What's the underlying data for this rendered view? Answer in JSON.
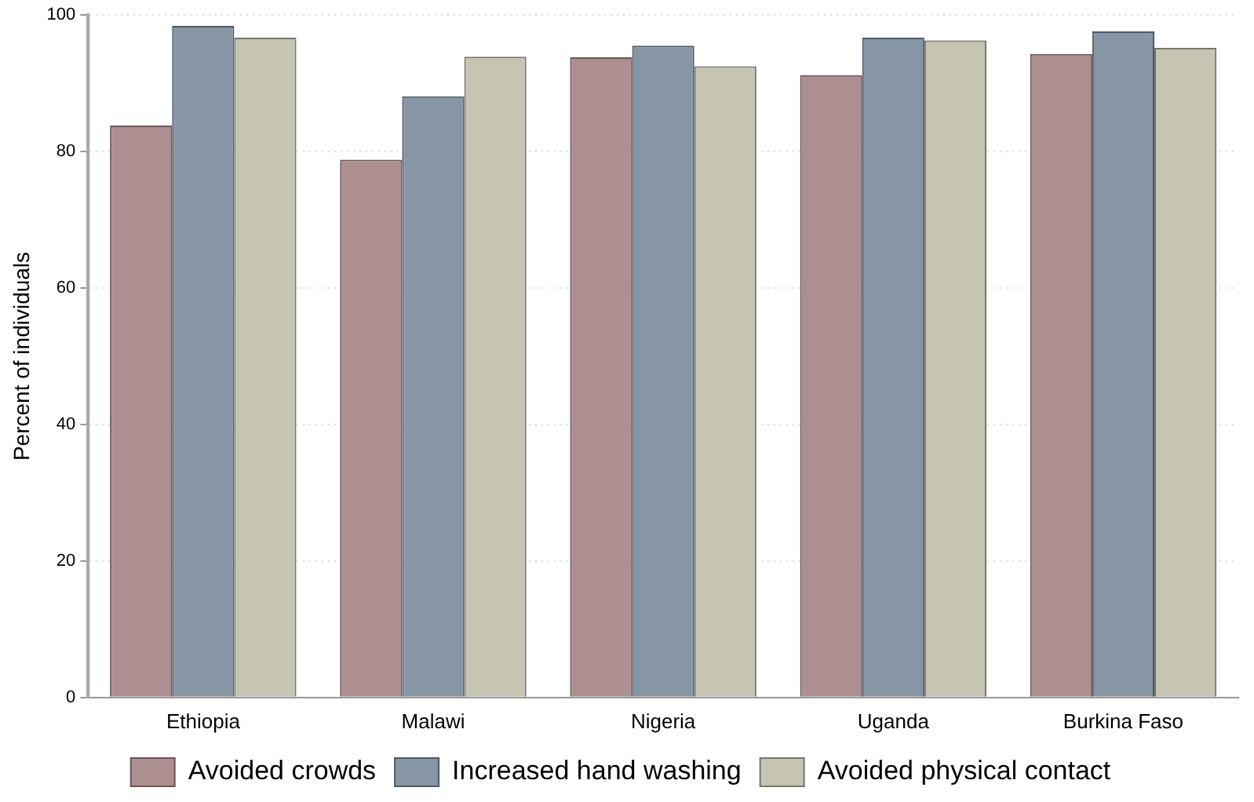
{
  "chart_data": {
    "type": "bar",
    "ylabel": "Percent of individuals",
    "categories": [
      "Ethiopia",
      "Malawi",
      "Nigeria",
      "Uganda",
      "Burkina Faso"
    ],
    "series": [
      {
        "name": "Avoided crowds",
        "color": "#ae8f91",
        "values": [
          83.8,
          78.8,
          93.8,
          91.2,
          94.3
        ]
      },
      {
        "name": "Increased hand washing",
        "color": "#8696a4",
        "values": [
          98.4,
          88.1,
          95.5,
          96.7,
          97.6
        ]
      },
      {
        "name": "Avoided physical contact",
        "color": "#c5c5b2",
        "values": [
          96.7,
          93.9,
          92.5,
          96.3,
          95.2
        ]
      }
    ],
    "ylim": [
      0,
      100
    ],
    "yticks": [
      0,
      20,
      40,
      60,
      80,
      100
    ],
    "grid": "y",
    "legend": "bottom"
  }
}
